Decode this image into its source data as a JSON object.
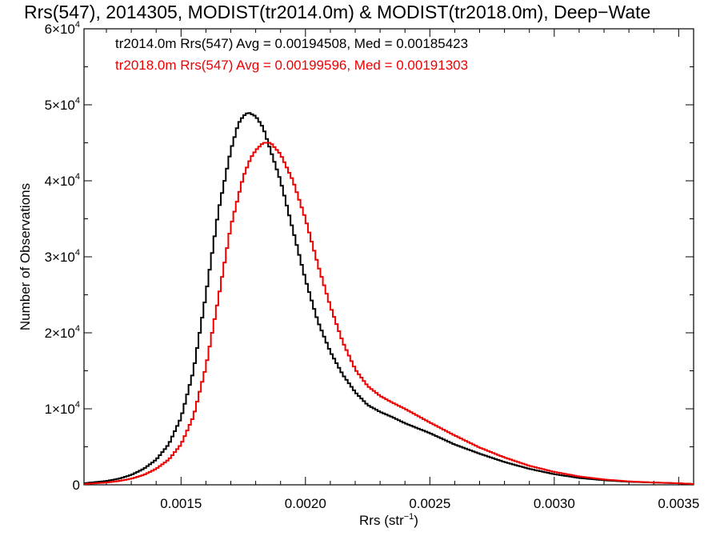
{
  "chart_data": {
    "type": "line",
    "title": "Rrs(547), 2014305, MODIST(tr2014.0m) & MODIST(tr2018.0m), Deep−Wate",
    "xlabel": "Rrs (str",
    "xlabel_sup": "−1",
    "xlabel_end": ")",
    "ylabel": "Number of Observations",
    "xlim": [
      0.00111,
      0.00356
    ],
    "ylim": [
      0,
      60000
    ],
    "x_ticks": [
      {
        "value": 0.0015,
        "label": "0.0015"
      },
      {
        "value": 0.002,
        "label": "0.0020"
      },
      {
        "value": 0.0025,
        "label": "0.0025"
      },
      {
        "value": 0.003,
        "label": "0.0030"
      },
      {
        "value": 0.0035,
        "label": "0.0035"
      }
    ],
    "y_ticks": [
      {
        "value": 0,
        "label": "0",
        "exp": ""
      },
      {
        "value": 10000,
        "label": "1×10",
        "exp": "4"
      },
      {
        "value": 20000,
        "label": "2×10",
        "exp": "4"
      },
      {
        "value": 30000,
        "label": "3×10",
        "exp": "4"
      },
      {
        "value": 40000,
        "label": "4×10",
        "exp": "4"
      },
      {
        "value": 50000,
        "label": "5×10",
        "exp": "4"
      },
      {
        "value": 60000,
        "label": "6×10",
        "exp": "4"
      }
    ],
    "legend": [
      {
        "text": "tr2014.0m Rrs(547) Avg = 0.00194508, Med = 0.00185423",
        "color": "#000000"
      },
      {
        "text": "tr2018.0m Rrs(547) Avg = 0.00199596, Med = 0.00191303",
        "color": "#ee0000"
      }
    ],
    "series": [
      {
        "color": "#000000",
        "points": [
          [
            0.00111,
            200
          ],
          [
            0.0012,
            500
          ],
          [
            0.00125,
            800
          ],
          [
            0.0013,
            1300
          ],
          [
            0.00135,
            2100
          ],
          [
            0.0014,
            3300
          ],
          [
            0.00145,
            5300
          ],
          [
            0.0015,
            8800
          ],
          [
            0.00155,
            15000
          ],
          [
            0.0016,
            25000
          ],
          [
            0.00165,
            36000
          ],
          [
            0.0017,
            44000
          ],
          [
            0.00173,
            47500
          ],
          [
            0.00175,
            48500
          ],
          [
            0.00177,
            49000
          ],
          [
            0.0018,
            48500
          ],
          [
            0.00183,
            47000
          ],
          [
            0.00186,
            44000
          ],
          [
            0.0019,
            40000
          ],
          [
            0.00195,
            33500
          ],
          [
            0.002,
            27000
          ],
          [
            0.00205,
            21500
          ],
          [
            0.0021,
            17500
          ],
          [
            0.00215,
            14500
          ],
          [
            0.0022,
            12200
          ],
          [
            0.00225,
            10500
          ],
          [
            0.0023,
            9600
          ],
          [
            0.00235,
            8900
          ],
          [
            0.0024,
            8100
          ],
          [
            0.0025,
            6800
          ],
          [
            0.0026,
            5300
          ],
          [
            0.0027,
            4100
          ],
          [
            0.0028,
            3000
          ],
          [
            0.0029,
            2100
          ],
          [
            0.003,
            1400
          ],
          [
            0.0031,
            900
          ],
          [
            0.0032,
            600
          ],
          [
            0.0033,
            400
          ],
          [
            0.0034,
            300
          ],
          [
            0.0035,
            200
          ],
          [
            0.00356,
            100
          ]
        ]
      },
      {
        "color": "#ee0000",
        "points": [
          [
            0.00111,
            100
          ],
          [
            0.0012,
            300
          ],
          [
            0.00125,
            500
          ],
          [
            0.0013,
            800
          ],
          [
            0.00135,
            1300
          ],
          [
            0.0014,
            2100
          ],
          [
            0.00145,
            3300
          ],
          [
            0.0015,
            5300
          ],
          [
            0.00155,
            9000
          ],
          [
            0.0016,
            15500
          ],
          [
            0.00165,
            24500
          ],
          [
            0.0017,
            34000
          ],
          [
            0.00175,
            40500
          ],
          [
            0.00178,
            43000
          ],
          [
            0.0018,
            44000
          ],
          [
            0.00183,
            45000
          ],
          [
            0.00186,
            45000
          ],
          [
            0.0019,
            43500
          ],
          [
            0.00195,
            40000
          ],
          [
            0.002,
            35000
          ],
          [
            0.00205,
            29000
          ],
          [
            0.0021,
            23500
          ],
          [
            0.00215,
            18800
          ],
          [
            0.0022,
            15200
          ],
          [
            0.00225,
            13000
          ],
          [
            0.0023,
            11700
          ],
          [
            0.00235,
            10800
          ],
          [
            0.0024,
            10000
          ],
          [
            0.0025,
            8200
          ],
          [
            0.0026,
            6500
          ],
          [
            0.0027,
            4900
          ],
          [
            0.0028,
            3600
          ],
          [
            0.0029,
            2500
          ],
          [
            0.003,
            1700
          ],
          [
            0.0031,
            1100
          ],
          [
            0.0032,
            700
          ],
          [
            0.0033,
            450
          ],
          [
            0.0034,
            300
          ],
          [
            0.0035,
            200
          ],
          [
            0.00356,
            100
          ]
        ]
      }
    ]
  }
}
